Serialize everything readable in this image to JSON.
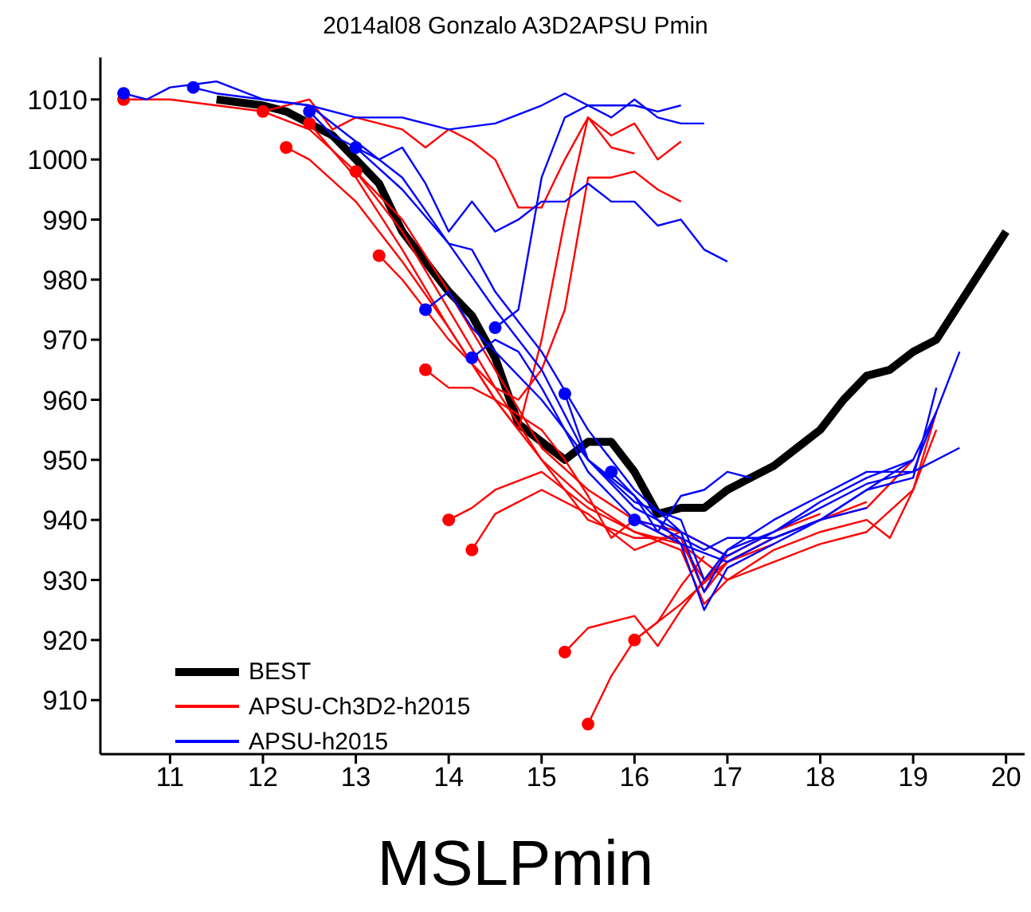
{
  "chart_data": {
    "type": "line",
    "title": "2014al08 Gonzalo A3D2APSU Pmin",
    "xlabel": "MSLPmin",
    "xlim": [
      10.25,
      20.2
    ],
    "xticks": [
      11,
      12,
      13,
      14,
      15,
      16,
      17,
      18,
      19,
      20
    ],
    "ylim": [
      901,
      1017
    ],
    "yticks": [
      910,
      920,
      930,
      940,
      950,
      960,
      970,
      980,
      990,
      1000,
      1010
    ],
    "grid": false,
    "legend": "bottom left",
    "marker": "none",
    "line_style": "solid",
    "series": [
      {
        "name": "BEST",
        "color": "#000000",
        "x": [
          11.5,
          12,
          12.25,
          12.5,
          12.75,
          13,
          13.25,
          13.5,
          13.75,
          14,
          14.25,
          14.5,
          14.75,
          15,
          15.25,
          15.5,
          15.75,
          16,
          16.25,
          16.5,
          16.75,
          17,
          17.25,
          17.5,
          17.75,
          18,
          18.25,
          18.5,
          18.75,
          19,
          19.25,
          19.5,
          19.75,
          20
        ],
        "values": [
          1010,
          1009,
          1008,
          1006,
          1004,
          1000,
          996,
          988,
          983,
          978,
          974,
          967,
          956,
          953,
          950,
          953,
          953,
          948,
          941,
          942,
          942,
          945,
          947,
          949,
          952,
          955,
          960,
          964,
          965,
          968,
          970,
          976,
          982,
          988
        ]
      },
      {
        "name": "APSU-Ch3D2-h2015",
        "color": "#ff0000",
        "x": [
          10.5,
          11,
          11.5,
          12,
          12.5,
          13,
          13.5,
          14,
          14.5,
          15,
          15.5,
          16,
          16.5,
          17,
          17.5,
          18,
          18.5,
          19,
          19.25
        ],
        "values": [
          1010,
          1010,
          1009,
          1008,
          1005,
          998,
          990,
          978,
          965,
          952,
          945,
          940,
          936,
          930,
          933,
          936,
          938,
          945,
          955
        ]
      },
      {
        "color": "#ff0000",
        "x": [
          12.25,
          12.5,
          13,
          13.5,
          14,
          14.5,
          15,
          15.5,
          16,
          16.5,
          16.75,
          17,
          17.5,
          18,
          18.5,
          19
        ],
        "values": [
          1002,
          1000,
          993,
          983,
          972,
          960,
          950,
          940,
          937,
          937,
          928,
          933,
          937,
          940,
          942,
          950
        ]
      },
      {
        "color": "#ff0000",
        "x": [
          13.25,
          13.5,
          14,
          14.5,
          15,
          15.5,
          16,
          16.5,
          16.75,
          17,
          17.5,
          18,
          18.5,
          18.75,
          19,
          19.25
        ],
        "values": [
          984,
          980,
          970,
          962,
          950,
          943,
          938,
          935,
          926,
          930,
          935,
          938,
          940,
          937,
          945,
          958
        ]
      },
      {
        "color": "#ff0000",
        "x": [
          13.75,
          14,
          14.25,
          14.5,
          15,
          15.25,
          15.5,
          15.75,
          16,
          16.5,
          17,
          17.5,
          18
        ],
        "values": [
          965,
          962,
          962,
          960,
          955,
          950,
          944,
          937,
          940,
          938,
          934,
          938,
          941
        ]
      },
      {
        "color": "#ff0000",
        "x": [
          14,
          14.25,
          14.5,
          15,
          15.5,
          16,
          16.5,
          16.75,
          17,
          17.5,
          18,
          18.5
        ],
        "values": [
          940,
          942,
          945,
          948,
          942,
          938,
          936,
          930,
          933,
          937,
          940,
          943
        ]
      },
      {
        "color": "#ff0000",
        "x": [
          14.25,
          14.5,
          15,
          15.5,
          16,
          16.5
        ],
        "values": [
          935,
          941,
          945,
          941,
          935,
          938
        ]
      },
      {
        "color": "#ff0000",
        "x": [
          15.25,
          15.5,
          16,
          16.25,
          16.5,
          16.75,
          17
        ],
        "values": [
          918,
          922,
          924,
          919,
          925,
          930,
          934
        ]
      },
      {
        "color": "#ff0000",
        "x": [
          15.5,
          15.75,
          16,
          16.5,
          17,
          17.5
        ],
        "values": [
          906,
          914,
          920,
          926,
          933,
          936
        ]
      },
      {
        "color": "#ff0000",
        "x": [
          16,
          16.25,
          16.5,
          16.75
        ],
        "values": [
          920,
          923,
          929,
          934
        ]
      },
      {
        "color": "#ff0000",
        "x": [
          12,
          12.5,
          12.75,
          13,
          13.5,
          13.75,
          14,
          14.25,
          14.5,
          14.75,
          15,
          15.25,
          15.5,
          15.75,
          16
        ],
        "values": [
          1008,
          1010,
          1005,
          1007,
          1005,
          1002,
          1005,
          1003,
          1000,
          992,
          992,
          1000,
          1007,
          1002,
          1001
        ]
      },
      {
        "color": "#ff0000",
        "x": [
          12.5,
          13,
          13.5,
          14,
          14.5,
          14.75,
          15,
          15.25,
          15.5,
          15.75,
          16,
          16.25,
          16.5
        ],
        "values": [
          1006,
          997,
          985,
          972,
          960,
          955,
          970,
          990,
          1007,
          1004,
          1006,
          1000,
          1003
        ]
      },
      {
        "color": "#ff0000",
        "x": [
          13,
          13.5,
          14,
          14.5,
          14.75,
          15,
          15.25,
          15.5,
          15.75,
          16,
          16.25,
          16.5
        ],
        "values": [
          998,
          988,
          975,
          962,
          960,
          965,
          975,
          997,
          997,
          998,
          995,
          993
        ]
      },
      {
        "name": "APSU-h2015",
        "color": "#0000ff",
        "x": [
          10.5,
          10.75,
          11,
          11.5,
          12,
          12.5,
          13,
          13.5,
          14,
          14.5,
          15,
          15.25,
          15.5,
          16,
          16.25,
          16.5
        ],
        "values": [
          1011,
          1010,
          1012,
          1013,
          1010,
          1009,
          1007,
          1007,
          1005,
          1006,
          1009,
          1011,
          1009,
          1009,
          1008,
          1009
        ]
      },
      {
        "color": "#0000ff",
        "x": [
          11.25,
          11.5,
          12,
          12.5,
          13,
          13.5,
          14,
          14.5,
          15,
          15.5,
          16,
          16.5,
          16.75,
          17,
          17.5,
          18,
          18.5,
          19,
          19.25
        ],
        "values": [
          1012,
          1011,
          1010,
          1009,
          1003,
          997,
          986,
          975,
          965,
          950,
          943,
          940,
          930,
          935,
          938,
          943,
          947,
          950,
          958
        ]
      },
      {
        "color": "#0000ff",
        "x": [
          13,
          13.5,
          14,
          14.25,
          14.5,
          15,
          15.5,
          16,
          16.5,
          16.75,
          17,
          17.5,
          18,
          18.5,
          19,
          19.5
        ],
        "values": [
          1002,
          995,
          986,
          985,
          978,
          968,
          955,
          945,
          938,
          928,
          935,
          940,
          944,
          948,
          948,
          952
        ]
      },
      {
        "color": "#0000ff",
        "x": [
          12.5,
          12.75,
          13,
          13.25,
          13.5,
          13.75,
          14,
          14.25,
          14.5,
          14.75,
          15,
          15.25,
          15.5,
          15.75,
          16,
          16.25,
          16.5,
          16.75,
          17
        ],
        "values": [
          1008,
          1004,
          1002,
          1000,
          1002,
          996,
          988,
          993,
          988,
          990,
          993,
          993,
          996,
          993,
          993,
          989,
          990,
          985,
          983
        ]
      },
      {
        "color": "#0000ff",
        "x": [
          13.75,
          14,
          14.25,
          14.5,
          15,
          15.5,
          16,
          16.5,
          17,
          17.5,
          18,
          18.5,
          19,
          19.5
        ],
        "values": [
          975,
          978,
          972,
          968,
          960,
          950,
          942,
          938,
          934,
          938,
          942,
          946,
          948,
          968
        ]
      },
      {
        "color": "#0000ff",
        "x": [
          14.25,
          14.5,
          14.75,
          15,
          15.5,
          16,
          16.5,
          16.75,
          17,
          17.5,
          18,
          18.5,
          19,
          19.25
        ],
        "values": [
          967,
          970,
          968,
          962,
          948,
          940,
          936,
          925,
          932,
          936,
          940,
          945,
          947,
          962
        ]
      },
      {
        "color": "#0000ff",
        "x": [
          15.25,
          15.5,
          16,
          16.25,
          16.5,
          16.75,
          17,
          17.25
        ],
        "values": [
          961,
          950,
          944,
          938,
          944,
          945,
          948,
          947
        ]
      },
      {
        "color": "#0000ff",
        "x": [
          15.75,
          16,
          16.5,
          17,
          17.5,
          18,
          18.5
        ],
        "values": [
          948,
          944,
          936,
          933,
          937,
          940,
          942
        ]
      },
      {
        "color": "#0000ff",
        "x": [
          16,
          16.25,
          16.5,
          16.75,
          17,
          17.5,
          18,
          18.5,
          19
        ],
        "values": [
          940,
          939,
          937,
          935,
          937,
          937,
          940,
          945,
          950
        ]
      },
      {
        "color": "#0000ff",
        "x": [
          14.5,
          14.75,
          15,
          15.25,
          15.5,
          15.75,
          16,
          16.25,
          16.5,
          16.75
        ],
        "values": [
          972,
          975,
          997,
          1007,
          1009,
          1007,
          1010,
          1007,
          1006,
          1006
        ]
      },
      {
        "type": "scatter",
        "marker": "circle",
        "color": "#ff0000",
        "x": [
          10.5,
          12.25,
          13.25,
          13.75,
          14,
          14.25,
          15.25,
          15.5,
          16,
          12,
          12.5,
          13
        ],
        "values": [
          1010,
          1002,
          984,
          965,
          940,
          935,
          918,
          906,
          920,
          1008,
          1006,
          998
        ]
      },
      {
        "type": "scatter",
        "marker": "circle",
        "color": "#0000ff",
        "x": [
          10.5,
          11.25,
          13,
          12.5,
          13.75,
          14.25,
          15.25,
          15.75,
          16,
          14.5
        ],
        "values": [
          1011,
          1012,
          1002,
          1008,
          975,
          967,
          961,
          948,
          940,
          972
        ]
      }
    ]
  }
}
